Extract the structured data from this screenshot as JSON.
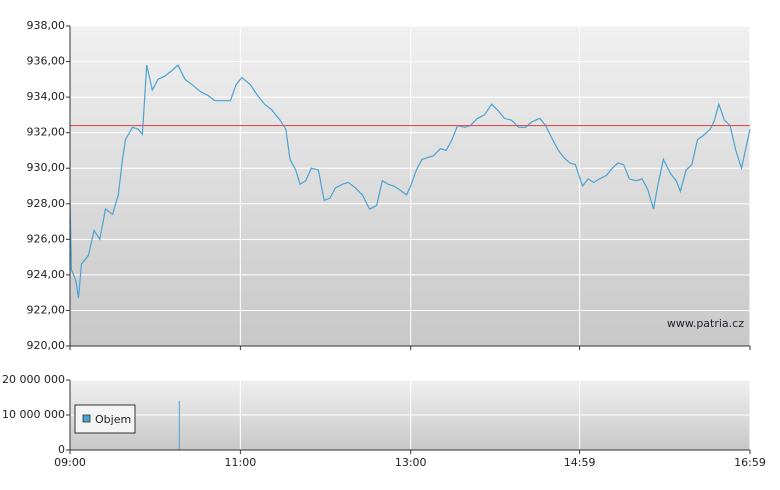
{
  "chart_data": [
    {
      "type": "line",
      "x": [
        "09:00",
        "09:01",
        "09:04",
        "09:06",
        "09:08",
        "09:13",
        "09:17",
        "09:21",
        "09:25",
        "09:30",
        "09:34",
        "09:37",
        "09:39",
        "09:44",
        "09:48",
        "09:51",
        "09:54",
        "09:58",
        "10:02",
        "10:07",
        "10:12",
        "10:16",
        "10:21",
        "10:26",
        "10:32",
        "10:37",
        "10:42",
        "10:47",
        "10:53",
        "10:57",
        "11:01",
        "11:07",
        "11:12",
        "11:17",
        "11:22",
        "11:28",
        "11:32",
        "11:35",
        "11:39",
        "11:42",
        "11:46",
        "11:50",
        "11:55",
        "11:59",
        "12:03",
        "12:07",
        "12:12",
        "12:16",
        "12:21",
        "12:26",
        "12:31",
        "12:36",
        "12:40",
        "12:44",
        "12:48",
        "12:52",
        "12:57",
        "13:00",
        "13:04",
        "13:08",
        "13:12",
        "13:16",
        "13:21",
        "13:25",
        "13:29",
        "13:33",
        "13:38",
        "13:42",
        "13:47",
        "13:52",
        "13:57",
        "14:02",
        "14:06",
        "14:11",
        "14:16",
        "14:21",
        "14:25",
        "14:31",
        "14:35",
        "14:40",
        "14:44",
        "14:48",
        "14:52",
        "14:56",
        "15:01",
        "15:05",
        "15:09",
        "15:13",
        "15:18",
        "15:22",
        "15:26",
        "15:30",
        "15:34",
        "15:39",
        "15:43",
        "15:47",
        "15:51",
        "15:54",
        "15:58",
        "16:03",
        "16:07",
        "16:10",
        "16:14",
        "16:18",
        "16:22",
        "16:27",
        "16:31",
        "16:34",
        "16:37",
        "16:41",
        "16:45",
        "16:49",
        "16:53",
        "16:59"
      ],
      "series": [
        {
          "color": "#4aa3d3",
          "values": [
            928.2,
            924.3,
            923.7,
            922.7,
            924.6,
            925.1,
            926.5,
            926.0,
            927.7,
            927.4,
            928.5,
            930.5,
            931.6,
            932.3,
            932.2,
            931.9,
            935.8,
            934.4,
            935.0,
            935.2,
            935.5,
            935.8,
            935.0,
            934.7,
            934.3,
            934.1,
            933.8,
            933.8,
            933.8,
            934.7,
            935.1,
            934.7,
            934.1,
            933.6,
            933.3,
            932.7,
            932.2,
            930.5,
            929.9,
            929.1,
            929.3,
            930.0,
            929.9,
            928.2,
            928.3,
            928.9,
            929.1,
            929.2,
            928.9,
            928.5,
            927.7,
            927.9,
            929.3,
            929.1,
            929.0,
            928.8,
            928.5,
            929.0,
            929.9,
            930.5,
            930.6,
            930.7,
            931.1,
            931.0,
            931.6,
            932.4,
            932.3,
            932.4,
            932.8,
            933.0,
            933.6,
            933.2,
            932.8,
            932.7,
            932.3,
            932.3,
            932.6,
            932.8,
            932.4,
            931.6,
            931.0,
            930.6,
            930.3,
            930.2,
            929.0,
            929.4,
            929.2,
            929.4,
            929.6,
            930.0,
            930.3,
            930.2,
            929.4,
            929.3,
            929.4,
            928.8,
            927.7,
            929.0,
            930.5,
            929.7,
            929.3,
            928.7,
            929.9,
            930.2,
            931.6,
            931.9,
            932.2,
            932.7,
            933.6,
            932.7,
            932.4,
            931.0,
            930.0,
            932.2
          ]
        }
      ],
      "reference_line": 932.4,
      "reference_color": "#e05050",
      "xlim": [
        "09:00",
        "16:59"
      ],
      "xticks": [
        "09:00",
        "11:00",
        "13:00",
        "14:59",
        "16:59"
      ],
      "ylim": [
        920,
        938
      ],
      "yticks": [
        {
          "value": 920,
          "label": "920,00"
        },
        {
          "value": 922,
          "label": "922,00"
        },
        {
          "value": 924,
          "label": "924,00"
        },
        {
          "value": 926,
          "label": "926,00"
        },
        {
          "value": 928,
          "label": "928,00"
        },
        {
          "value": 930,
          "label": "930,00"
        },
        {
          "value": 932,
          "label": "932,00"
        },
        {
          "value": 934,
          "label": "934,00"
        },
        {
          "value": 936,
          "label": "936,00"
        },
        {
          "value": 938,
          "label": "938,00"
        }
      ],
      "grid": true,
      "watermark": "www.patria.cz"
    },
    {
      "type": "volume",
      "x": [
        "10:17"
      ],
      "series": [
        {
          "name": "Objem",
          "color": "#4aa3d3",
          "values": [
            14000000
          ]
        }
      ],
      "xlim": [
        "09:00",
        "16:59"
      ],
      "xticks": [
        "09:00",
        "11:00",
        "13:00",
        "14:59",
        "16:59"
      ],
      "ylim": [
        0,
        20000000
      ],
      "yticks": [
        0,
        {
          "value": 10000000,
          "label": "10 000 000"
        },
        {
          "value": 20000000,
          "label": "20 000 000"
        }
      ],
      "grid": true,
      "legend": "top-left"
    }
  ]
}
